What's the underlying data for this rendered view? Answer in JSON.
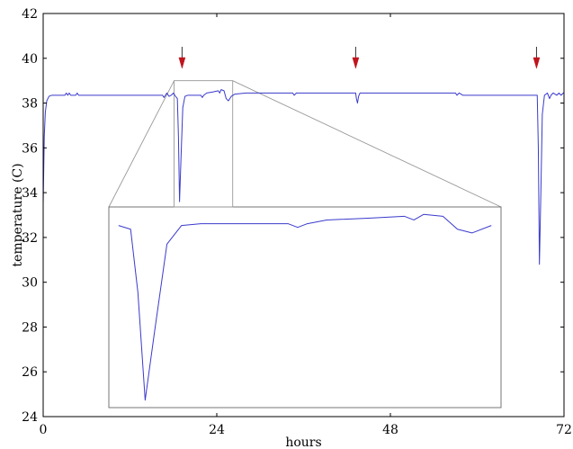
{
  "chart_data": {
    "type": "line",
    "title": "",
    "xlabel": "hours",
    "ylabel": "temperature (C)",
    "xlim": [
      0,
      72
    ],
    "ylim": [
      24,
      42
    ],
    "xticks": [
      0,
      24,
      48,
      72
    ],
    "yticks": [
      24,
      26,
      28,
      30,
      32,
      34,
      36,
      38,
      40,
      42
    ],
    "grid": false,
    "line_color": "#3a3acc",
    "arrow_color": "#c0141c",
    "series": [
      {
        "x": [
          0,
          0.15,
          0.3,
          0.5,
          0.8,
          1.2,
          3.0,
          3.2,
          3.4,
          3.6,
          3.8,
          4.5,
          4.7,
          4.9,
          5.2,
          10.0,
          16.5,
          16.7,
          16.9,
          17.1,
          17.4,
          17.7,
          18.0,
          18.3,
          18.55,
          18.7,
          18.85,
          19.05,
          19.3,
          19.6,
          20.0,
          21.0,
          21.8,
          22.0,
          22.2,
          22.6,
          23.5,
          24.2,
          24.4,
          24.6,
          25.0,
          25.3,
          25.6,
          26.0,
          26.5,
          28.0,
          34.5,
          34.7,
          35.0,
          38.0,
          43.2,
          43.3,
          43.45,
          43.6,
          43.8,
          44.5,
          57.0,
          57.2,
          57.5,
          58.0,
          61.0,
          68.3,
          68.45,
          68.6,
          68.8,
          69.0,
          69.3,
          69.7,
          70.0,
          70.2,
          70.5,
          71.0,
          71.3,
          71.6,
          71.9,
          72.0
        ],
        "y": [
          33.5,
          36.5,
          37.6,
          38.1,
          38.3,
          38.35,
          38.35,
          38.45,
          38.35,
          38.45,
          38.35,
          38.35,
          38.45,
          38.35,
          38.35,
          38.35,
          38.35,
          38.25,
          38.35,
          38.45,
          38.3,
          38.35,
          38.45,
          38.3,
          38.2,
          36.5,
          33.6,
          35.5,
          37.8,
          38.3,
          38.35,
          38.35,
          38.35,
          38.25,
          38.35,
          38.45,
          38.5,
          38.55,
          38.45,
          38.6,
          38.55,
          38.2,
          38.1,
          38.3,
          38.4,
          38.45,
          38.45,
          38.35,
          38.45,
          38.45,
          38.45,
          38.2,
          38.0,
          38.3,
          38.45,
          38.45,
          38.45,
          38.35,
          38.45,
          38.35,
          38.35,
          38.35,
          36.0,
          30.8,
          34.0,
          37.5,
          38.35,
          38.45,
          38.2,
          38.35,
          38.45,
          38.35,
          38.45,
          38.35,
          38.45,
          38.45
        ]
      }
    ],
    "arrows_at_hours": [
      19.2,
      43.2,
      68.2
    ],
    "zoom_window": {
      "x_range": [
        18.1,
        26.2
      ],
      "y_range": [
        38.2,
        39.0
      ]
    }
  }
}
